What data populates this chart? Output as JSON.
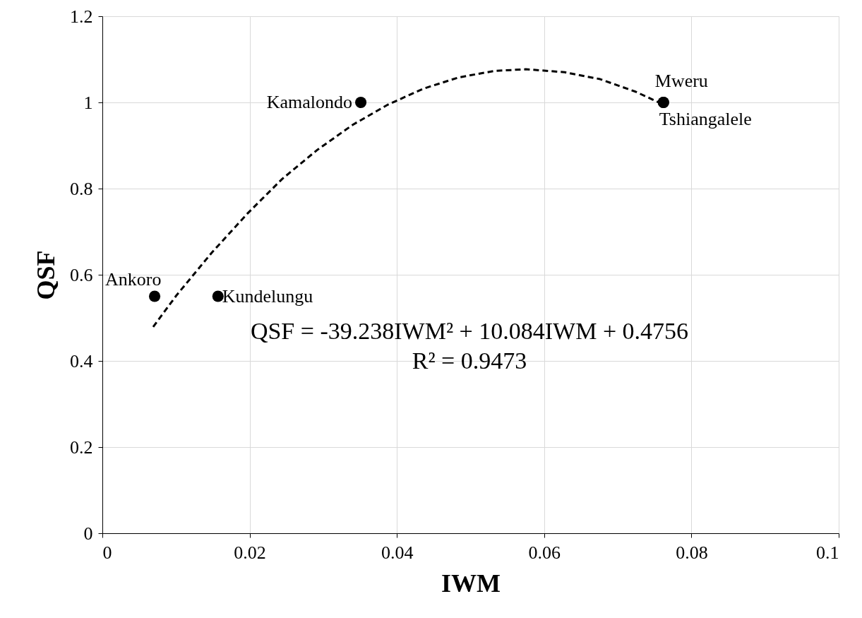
{
  "chart_data": {
    "type": "scatter",
    "xlabel": "IWM",
    "ylabel": "QSF",
    "xlim": [
      0,
      0.1
    ],
    "xticks": [
      0,
      0.02,
      0.04,
      0.06,
      0.08,
      0.1
    ],
    "ylim": [
      0,
      1.2
    ],
    "yticks": [
      0,
      0.2,
      0.4,
      0.6,
      0.8,
      1,
      1.2
    ],
    "grid": true,
    "marker": "circle",
    "series": [
      {
        "color": "#000000",
        "x": [
          0.0071,
          0.0157,
          0.0351,
          0.0762,
          0.0762
        ],
        "values": [
          0.55,
          0.55,
          1.0,
          1.0,
          1.0
        ]
      },
      {
        "type": "line",
        "line_style": "dashed",
        "marker": "none",
        "color": "#000000",
        "x": [
          0.0069,
          0.0101,
          0.0149,
          0.0197,
          0.0244,
          0.0292,
          0.034,
          0.0388,
          0.0436,
          0.0484,
          0.0532,
          0.0575,
          0.0628,
          0.0676,
          0.0724,
          0.0762
        ],
        "values": [
          0.479,
          0.553,
          0.652,
          0.742,
          0.822,
          0.89,
          0.948,
          0.995,
          1.032,
          1.058,
          1.073,
          1.077,
          1.07,
          1.054,
          1.025,
          0.995
        ]
      }
    ],
    "annotations": [
      {
        "text": "Ankoro",
        "x": 0.0071,
        "y": 0.55
      },
      {
        "text": "Kundelungu",
        "x": 0.0157,
        "y": 0.55
      },
      {
        "text": "Kamalondo",
        "x": 0.0351,
        "y": 1.0
      },
      {
        "text": "Mweru",
        "x": 0.0762,
        "y": 1.0
      },
      {
        "text": "Tshiangalele",
        "x": 0.0762,
        "y": 1.0
      },
      "QSF = -39.238IWM² + 10.084IWM + 0.4756",
      "R² = 0.9473"
    ]
  }
}
